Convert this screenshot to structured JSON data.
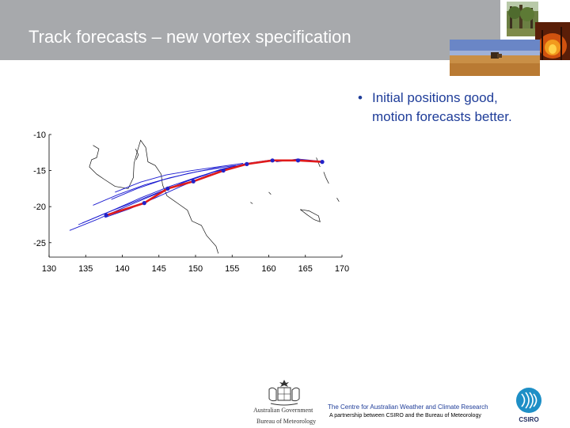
{
  "slide": {
    "title": "Track forecasts – new vortex specification",
    "bullet": "Initial positions good, motion forecasts better.",
    "bullet_line1": "Initial positions good,",
    "bullet_line2": "motion forecasts better."
  },
  "footer": {
    "gov_line1": "Australian Government",
    "gov_line2": "Bureau of Meteorology",
    "centre": "The Centre for Australian Weather and Climate Research",
    "partnership": "A partnership between CSIRO and the Bureau of Meteorology",
    "csiro": "CSIRO"
  },
  "colors": {
    "title_bar": "#a7a9ac",
    "bullet_text": "#1f3d99",
    "observed_track": "#e01b1b",
    "forecast_tracks": "#1a1ad0",
    "coastline": "#000000"
  },
  "chart_data": {
    "type": "line",
    "x_ticks": [
      130,
      135,
      140,
      145,
      150,
      155,
      160,
      165,
      170
    ],
    "y_ticks": [
      -10,
      -15,
      -20,
      -25
    ],
    "xlim": [
      130,
      170
    ],
    "ylim": [
      -27,
      -10
    ],
    "observed_track": {
      "color": "#e01b1b",
      "points": [
        [
          137.8,
          -21.2
        ],
        [
          143.0,
          -19.5
        ],
        [
          146.2,
          -17.5
        ],
        [
          149.7,
          -16.5
        ],
        [
          153.8,
          -15.0
        ],
        [
          157.0,
          -14.1
        ],
        [
          160.5,
          -13.6
        ],
        [
          164.0,
          -13.6
        ],
        [
          167.3,
          -13.8
        ]
      ]
    },
    "forecast_tracks": [
      {
        "points": [
          [
            137.6,
            -21.5
          ],
          [
            141.0,
            -20.3
          ],
          [
            144.5,
            -18.8
          ],
          [
            148.0,
            -17.2
          ],
          [
            151.5,
            -15.7
          ],
          [
            155.0,
            -14.6
          ]
        ]
      },
      {
        "points": [
          [
            134.0,
            -22.5
          ],
          [
            137.5,
            -21.0
          ],
          [
            141.5,
            -19.4
          ],
          [
            145.5,
            -17.8
          ],
          [
            149.5,
            -16.2
          ],
          [
            153.5,
            -14.8
          ],
          [
            157.0,
            -14.0
          ]
        ]
      },
      {
        "points": [
          [
            132.8,
            -23.3
          ],
          [
            136.5,
            -21.8
          ],
          [
            140.5,
            -20.0
          ],
          [
            144.5,
            -18.3
          ],
          [
            148.5,
            -16.6
          ],
          [
            152.5,
            -15.2
          ],
          [
            156.5,
            -14.2
          ]
        ]
      },
      {
        "points": [
          [
            134.5,
            -22.3
          ],
          [
            138.5,
            -20.6
          ],
          [
            142.5,
            -18.8
          ],
          [
            146.5,
            -17.2
          ],
          [
            150.5,
            -15.8
          ],
          [
            154.5,
            -14.6
          ],
          [
            158.0,
            -13.9
          ]
        ]
      },
      {
        "points": [
          [
            138.5,
            -19.0
          ],
          [
            142.0,
            -17.5
          ],
          [
            145.5,
            -16.3
          ],
          [
            149.0,
            -15.4
          ],
          [
            152.5,
            -14.7
          ],
          [
            155.5,
            -14.3
          ]
        ]
      },
      {
        "points": [
          [
            139.0,
            -18.0
          ],
          [
            142.5,
            -16.6
          ],
          [
            146.0,
            -15.6
          ],
          [
            149.5,
            -15.0
          ],
          [
            153.0,
            -14.5
          ],
          [
            156.5,
            -14.0
          ]
        ]
      },
      {
        "points": [
          [
            136.0,
            -19.8
          ],
          [
            139.5,
            -18.3
          ],
          [
            143.0,
            -17.0
          ],
          [
            146.5,
            -16.0
          ],
          [
            150.0,
            -15.2
          ],
          [
            153.5,
            -14.6
          ]
        ]
      },
      {
        "points": [
          [
            157.0,
            -14.0
          ],
          [
            160.5,
            -13.5
          ],
          [
            164.0,
            -13.6
          ],
          [
            167.5,
            -13.9
          ]
        ]
      },
      {
        "points": [
          [
            161.0,
            -13.8
          ],
          [
            164.0,
            -13.4
          ],
          [
            167.0,
            -13.7
          ]
        ]
      }
    ]
  }
}
